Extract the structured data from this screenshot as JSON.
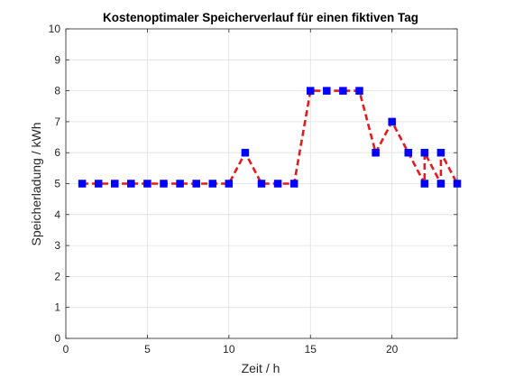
{
  "chart_data": {
    "type": "line",
    "title": "Kostenoptimaler Speicherverlauf für einen fiktiven Tag",
    "xlabel": "Zeit / h",
    "ylabel": "Speicherladung / kWh",
    "xlim": [
      0,
      24
    ],
    "ylim": [
      0,
      10
    ],
    "xticks": [
      0,
      5,
      10,
      15,
      20
    ],
    "yticks": [
      0,
      1,
      2,
      3,
      4,
      5,
      6,
      7,
      8,
      9,
      10
    ],
    "grid": true,
    "series": [
      {
        "line_style": "dashed",
        "line_color": "#e41a1c",
        "marker": "square",
        "marker_color": "#0000ff",
        "x": [
          1,
          2,
          3,
          4,
          5,
          6,
          7,
          8,
          9,
          10,
          11,
          12,
          13,
          14,
          15,
          16,
          17,
          18,
          19,
          20,
          21,
          22,
          22,
          23,
          23,
          24
        ],
        "y": [
          5,
          5,
          5,
          5,
          5,
          5,
          5,
          5,
          5,
          5,
          6,
          5,
          5,
          5,
          8,
          8,
          8,
          8,
          6,
          7,
          6,
          5,
          6,
          5,
          6,
          5
        ]
      }
    ]
  }
}
